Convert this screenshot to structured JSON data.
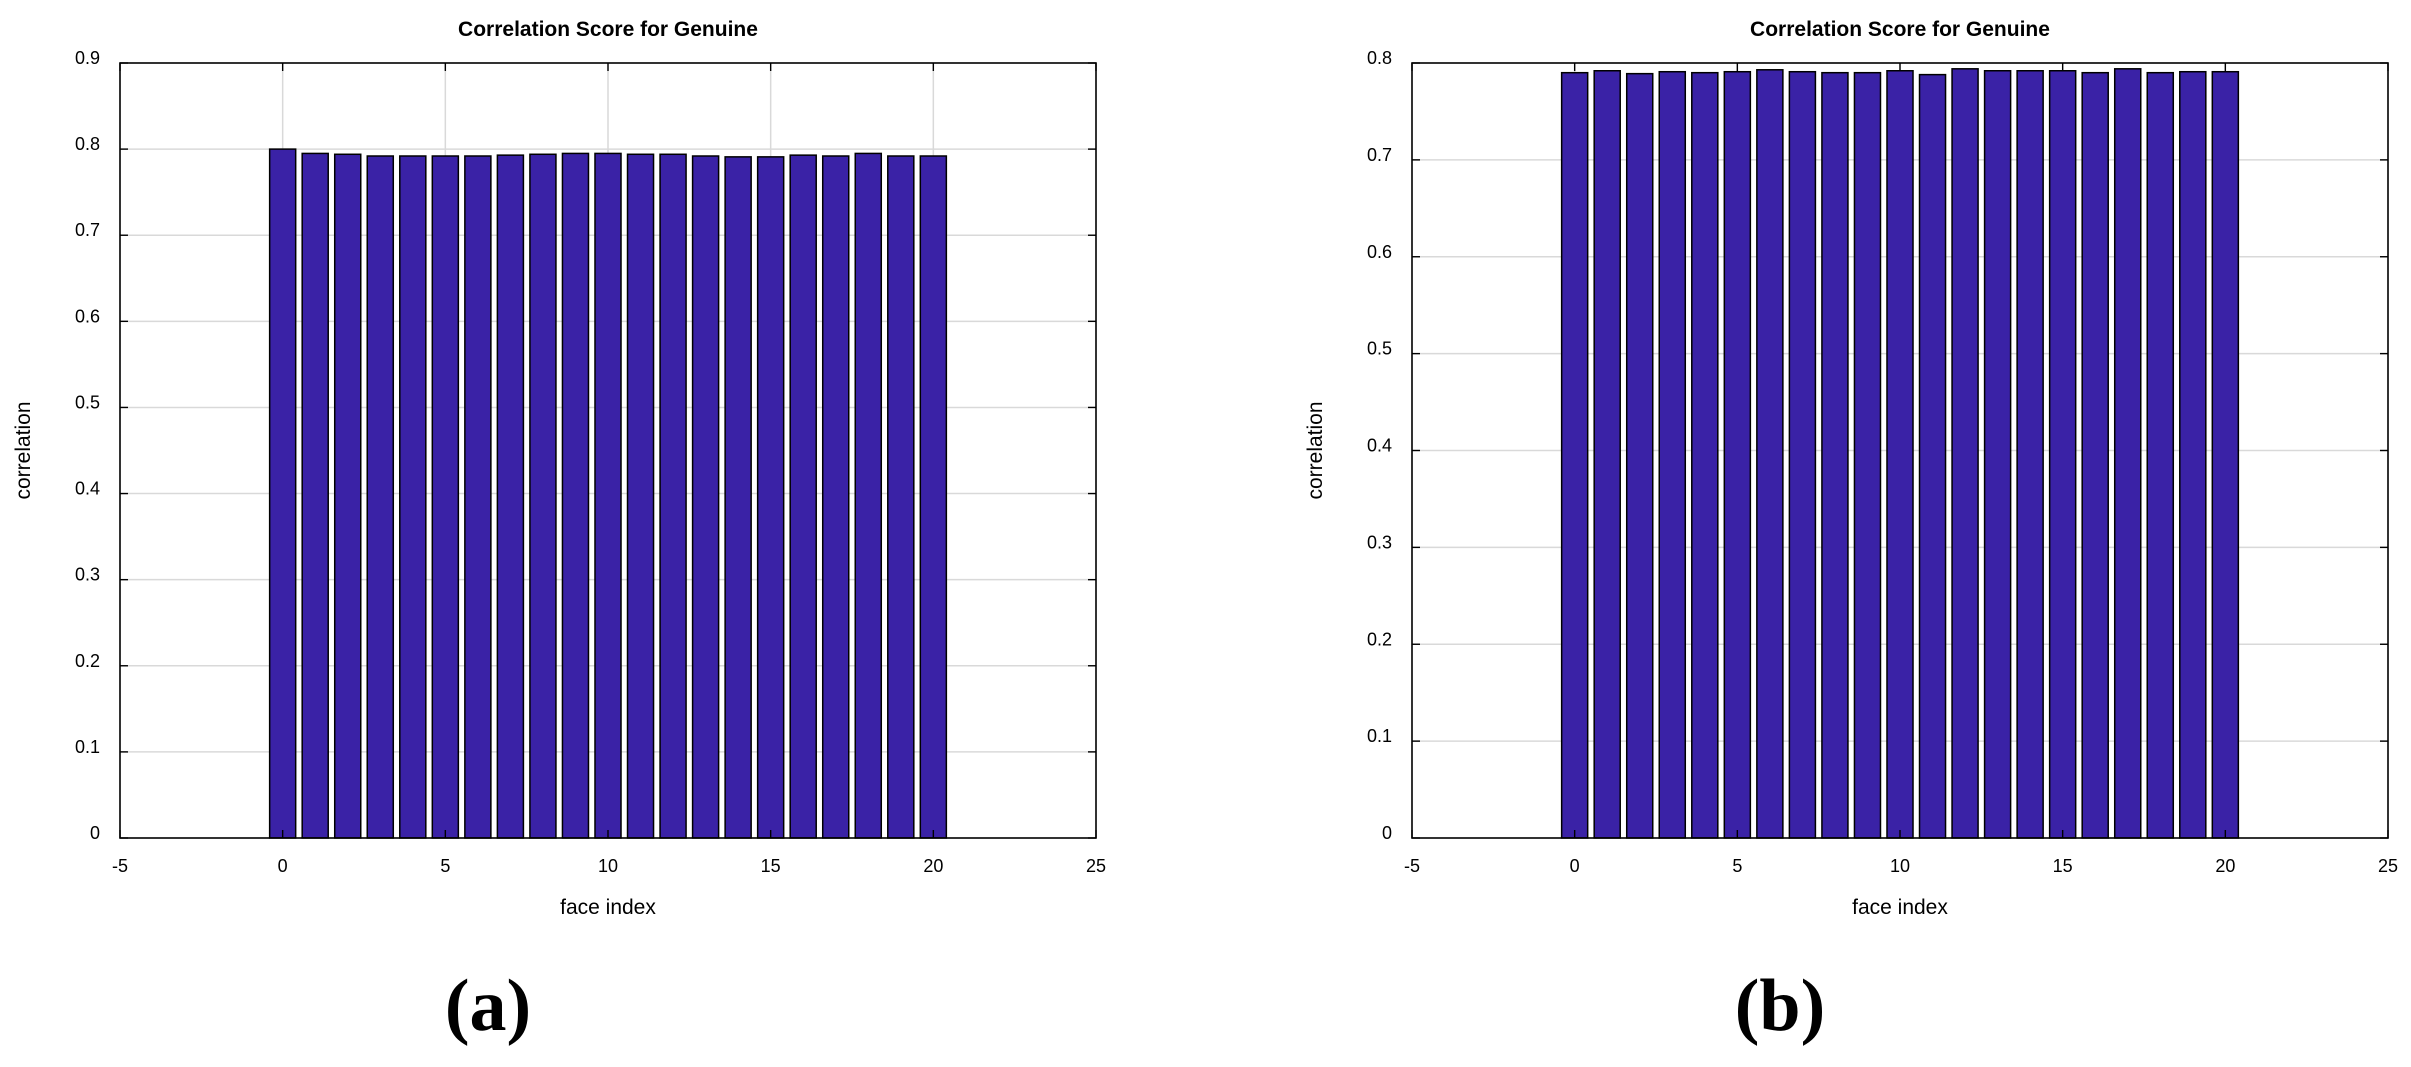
{
  "chart_data": [
    {
      "panel_label": "(a)",
      "type": "bar",
      "title": "Correlation Score for Genuine",
      "xlabel": "face index",
      "ylabel": "correlation",
      "xlim": [
        -5,
        25
      ],
      "ylim": [
        0,
        0.9
      ],
      "x_ticks": [
        "-5",
        "0",
        "5",
        "10",
        "15",
        "20",
        "25"
      ],
      "y_ticks": [
        "0",
        "0.1",
        "0.2",
        "0.3",
        "0.4",
        "0.5",
        "0.6",
        "0.7",
        "0.8",
        "0.9"
      ],
      "grid": true,
      "bar_color": "#3a22a6",
      "x": [
        0,
        1,
        2,
        3,
        4,
        5,
        6,
        7,
        8,
        9,
        10,
        11,
        12,
        13,
        14,
        15,
        16,
        17,
        18,
        19,
        20
      ],
      "values": [
        0.8,
        0.795,
        0.794,
        0.792,
        0.792,
        0.792,
        0.792,
        0.793,
        0.794,
        0.795,
        0.795,
        0.794,
        0.794,
        0.792,
        0.791,
        0.791,
        0.793,
        0.792,
        0.795,
        0.792,
        0.792
      ]
    },
    {
      "panel_label": "(b)",
      "type": "bar",
      "title": "Correlation Score for Genuine",
      "xlabel": "face index",
      "ylabel": "correlation",
      "xlim": [
        -5,
        25
      ],
      "ylim": [
        0,
        0.8
      ],
      "x_ticks": [
        "-5",
        "0",
        "5",
        "10",
        "15",
        "20",
        "25"
      ],
      "y_ticks": [
        "0",
        "0.1",
        "0.2",
        "0.3",
        "0.4",
        "0.5",
        "0.6",
        "0.7",
        "0.8"
      ],
      "grid": true,
      "bar_color": "#3a22a6",
      "x": [
        0,
        1,
        2,
        3,
        4,
        5,
        6,
        7,
        8,
        9,
        10,
        11,
        12,
        13,
        14,
        15,
        16,
        17,
        18,
        19,
        20
      ],
      "values": [
        0.79,
        0.792,
        0.789,
        0.791,
        0.79,
        0.791,
        0.793,
        0.791,
        0.79,
        0.79,
        0.792,
        0.788,
        0.794,
        0.792,
        0.792,
        0.792,
        0.79,
        0.794,
        0.79,
        0.791,
        0.791
      ]
    }
  ]
}
